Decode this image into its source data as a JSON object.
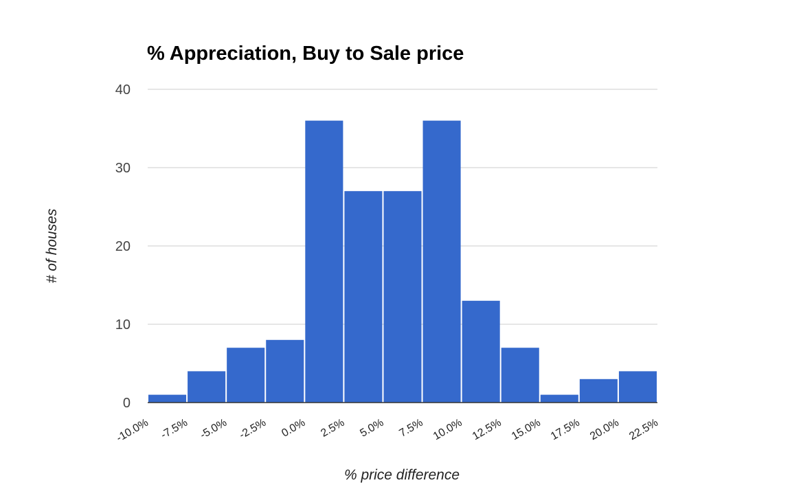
{
  "chart_data": {
    "type": "bar",
    "title": "% Appreciation, Buy to Sale price",
    "xlabel": "% price difference",
    "ylabel": "# of houses",
    "x_tick_labels": [
      "-10.0%",
      "-7.5%",
      "-5.0%",
      "-2.5%",
      "0.0%",
      "2.5%",
      "5.0%",
      "7.5%",
      "10.0%",
      "12.5%",
      "15.0%",
      "17.5%",
      "20.0%",
      "22.5%"
    ],
    "y_ticks": [
      0,
      10,
      20,
      30,
      40
    ],
    "ylim": [
      0,
      40
    ],
    "values": [
      1,
      4,
      7,
      8,
      36,
      27,
      27,
      36,
      13,
      7,
      1,
      3,
      4
    ],
    "bar_color": "#3569cc",
    "grid": true,
    "legend": "none"
  }
}
